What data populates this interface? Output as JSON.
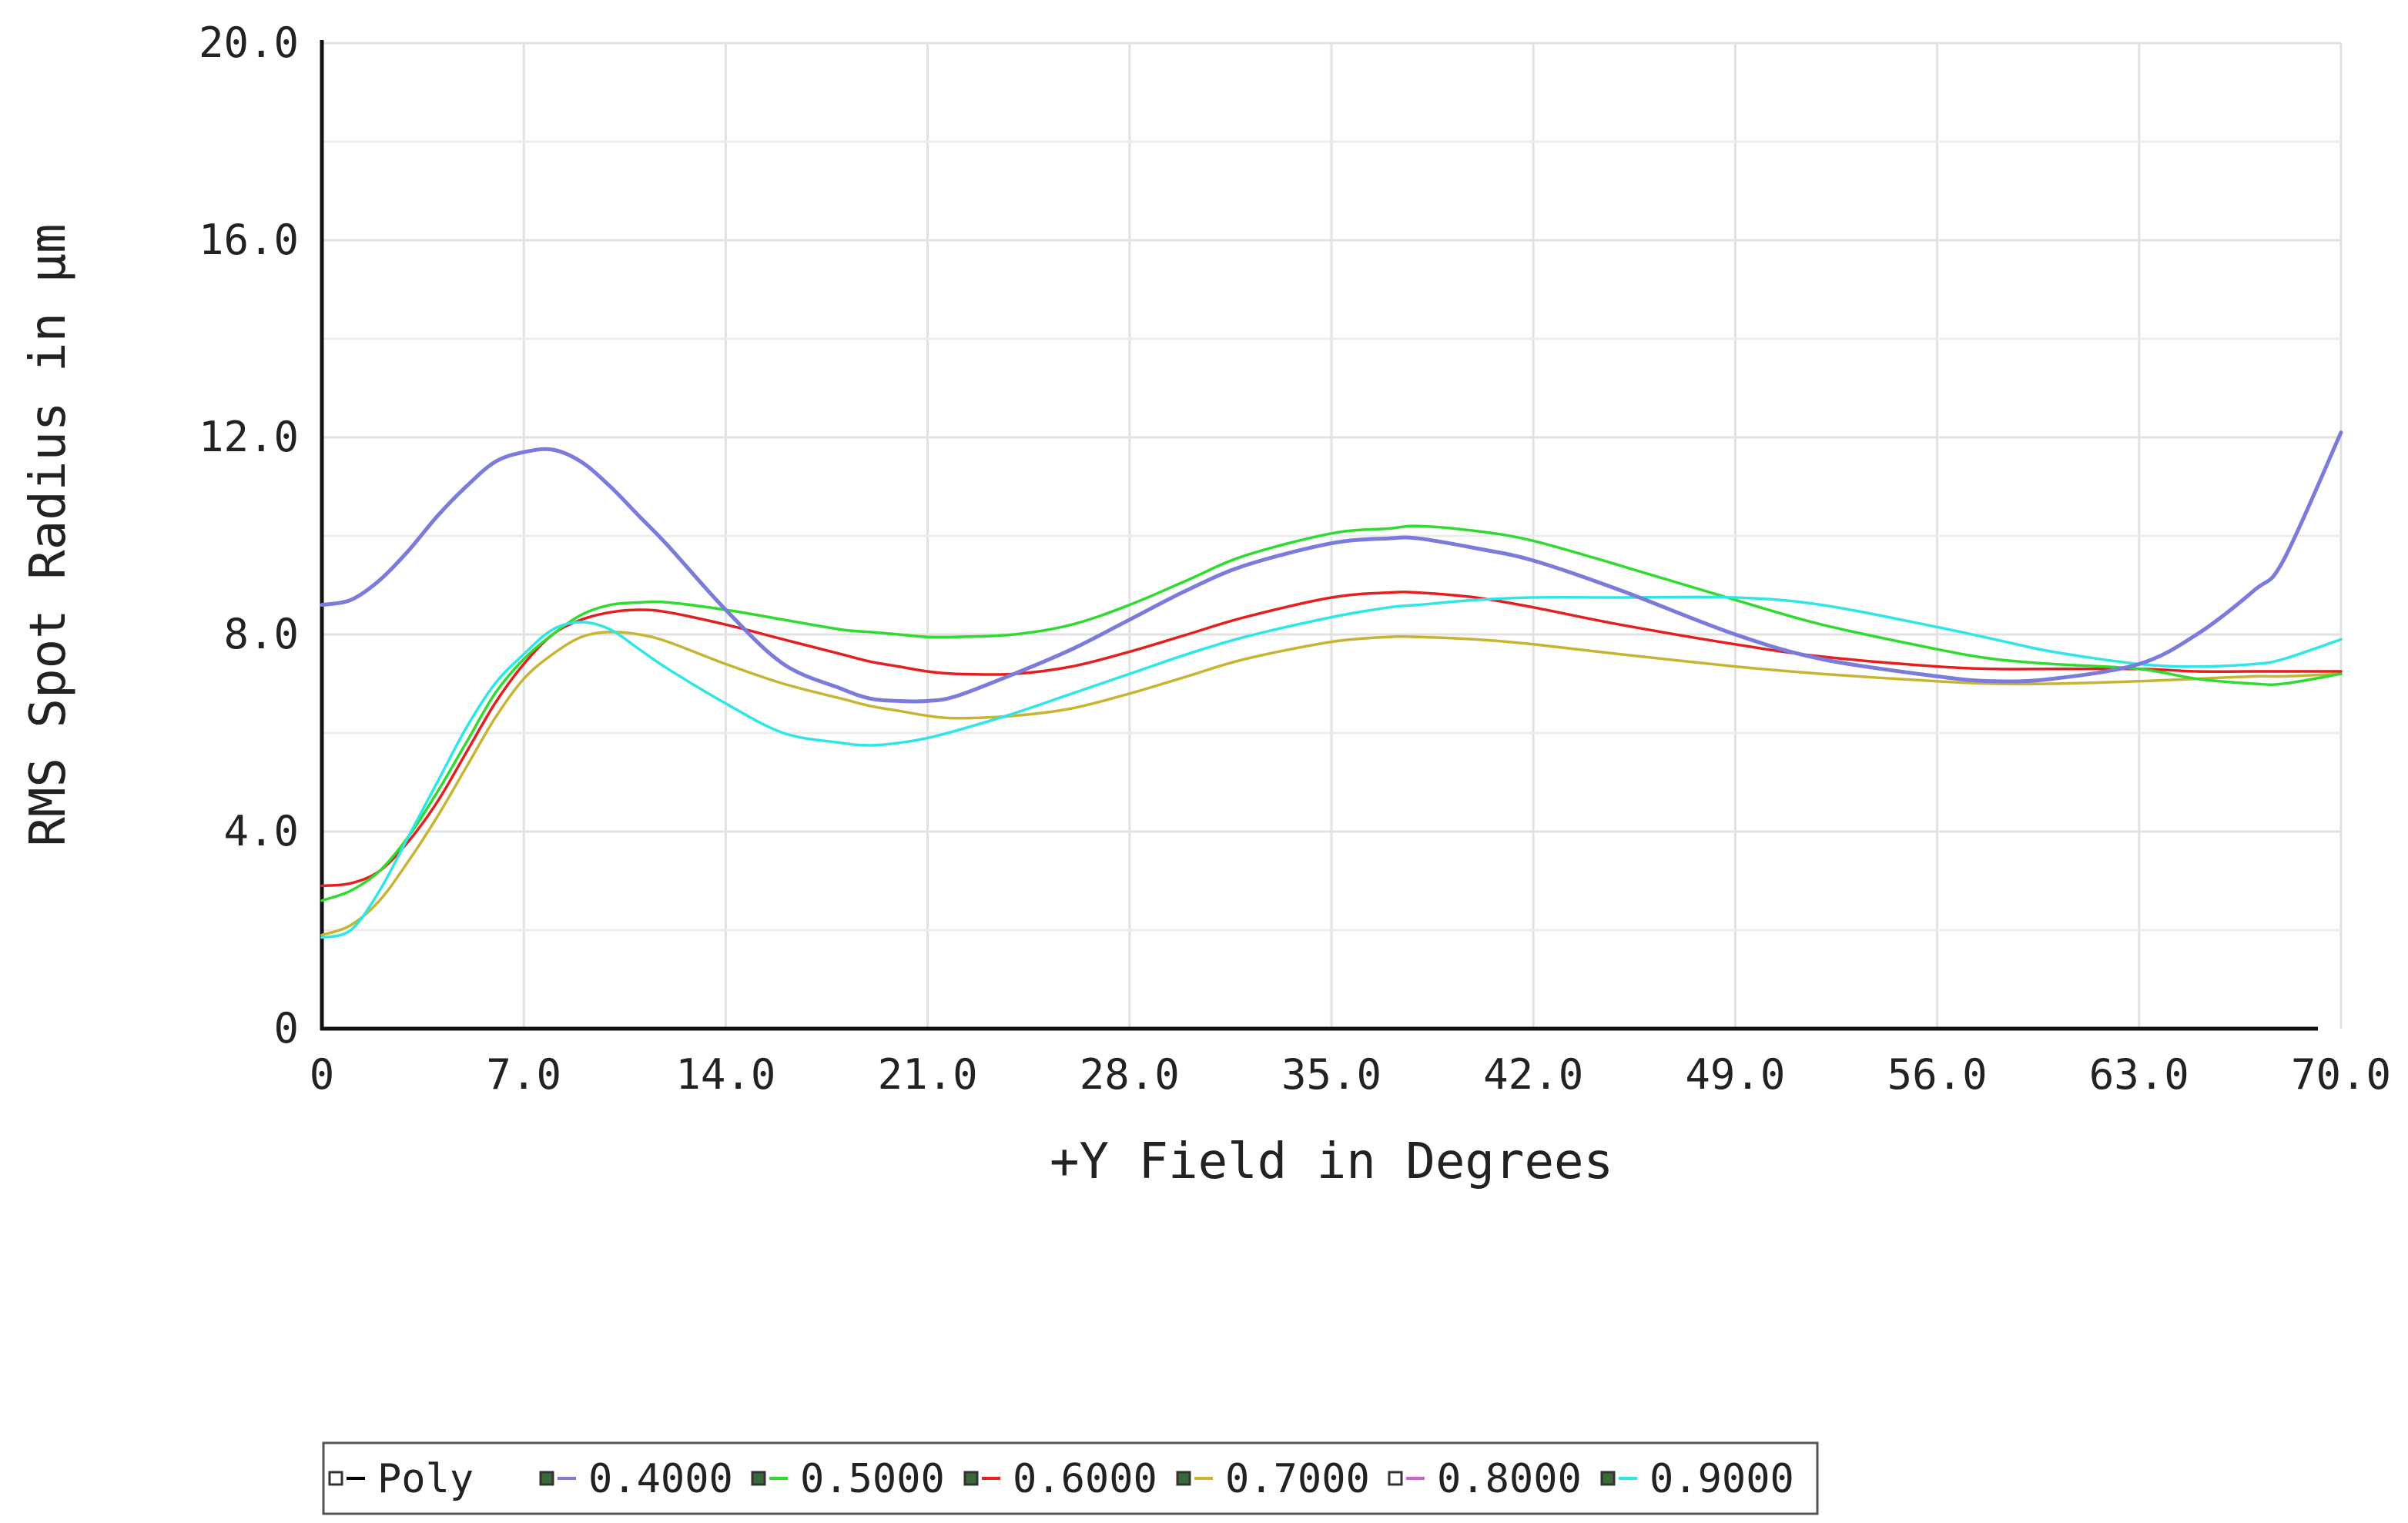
{
  "chart_data": {
    "type": "line",
    "xlabel": "+Y Field in Degrees",
    "ylabel": "RMS Spot Radius in µm",
    "xlim": [
      0,
      70
    ],
    "ylim": [
      0,
      20
    ],
    "x_ticks": [
      "0",
      "7.0",
      "14.0",
      "21.0",
      "28.0",
      "35.0",
      "42.0",
      "49.0",
      "56.0",
      "63.0",
      "70.0"
    ],
    "y_ticks": [
      "0",
      "4.0",
      "8.0",
      "12.0",
      "16.0",
      "20.0"
    ],
    "grid": true,
    "legend_position": "bottom",
    "legend": [
      {
        "label": "Poly",
        "color": "#000000",
        "has_series": false
      },
      {
        "label": "0.4000",
        "color": "#7b7bdb",
        "has_series": true
      },
      {
        "label": "0.5000",
        "color": "#2edb2e",
        "has_series": true
      },
      {
        "label": "0.6000",
        "color": "#e61e1e",
        "has_series": true
      },
      {
        "label": "0.7000",
        "color": "#c8b432",
        "has_series": true
      },
      {
        "label": "0.8000",
        "color": "#d35fd3",
        "has_series": false
      },
      {
        "label": "0.9000",
        "color": "#2ee6e6",
        "has_series": true
      }
    ],
    "x": [
      0,
      1,
      2,
      3,
      4,
      5,
      6,
      7,
      8,
      9,
      10,
      11,
      12,
      14,
      16,
      18,
      19,
      20,
      21,
      22,
      24,
      26,
      28,
      30,
      32,
      35,
      37,
      38,
      40,
      42,
      45,
      49,
      52,
      56,
      58,
      60,
      63,
      65,
      67,
      68,
      70
    ],
    "series": [
      {
        "name": "0.4000",
        "color": "#7b7bdb",
        "values": [
          8.6,
          8.7,
          9.1,
          9.7,
          10.4,
          11.0,
          11.5,
          11.7,
          11.75,
          11.5,
          11.0,
          10.4,
          9.8,
          8.5,
          7.4,
          6.9,
          6.7,
          6.65,
          6.65,
          6.75,
          7.2,
          7.7,
          8.3,
          8.9,
          9.4,
          9.85,
          9.95,
          9.95,
          9.75,
          9.5,
          8.9,
          8.0,
          7.5,
          7.15,
          7.05,
          7.1,
          7.4,
          8.0,
          8.9,
          9.5,
          12.1
        ]
      },
      {
        "name": "0.5000",
        "color": "#2edb2e",
        "values": [
          2.6,
          2.8,
          3.2,
          3.9,
          4.8,
          5.8,
          6.8,
          7.5,
          8.0,
          8.4,
          8.6,
          8.65,
          8.65,
          8.5,
          8.3,
          8.1,
          8.05,
          8.0,
          7.95,
          7.95,
          8.0,
          8.2,
          8.6,
          9.1,
          9.6,
          10.05,
          10.15,
          10.2,
          10.1,
          9.9,
          9.4,
          8.7,
          8.2,
          7.7,
          7.5,
          7.4,
          7.3,
          7.1,
          7.0,
          7.0,
          7.2
        ]
      },
      {
        "name": "0.6000",
        "color": "#e61e1e",
        "values": [
          2.9,
          2.95,
          3.2,
          3.8,
          4.6,
          5.6,
          6.6,
          7.4,
          8.0,
          8.3,
          8.45,
          8.5,
          8.45,
          8.2,
          7.9,
          7.6,
          7.45,
          7.35,
          7.25,
          7.2,
          7.2,
          7.35,
          7.65,
          8.0,
          8.35,
          8.75,
          8.85,
          8.85,
          8.75,
          8.55,
          8.2,
          7.8,
          7.55,
          7.35,
          7.3,
          7.3,
          7.3,
          7.25,
          7.25,
          7.25,
          7.25
        ]
      },
      {
        "name": "0.7000",
        "color": "#c8b432",
        "values": [
          1.9,
          2.1,
          2.6,
          3.4,
          4.3,
          5.3,
          6.3,
          7.1,
          7.6,
          7.95,
          8.05,
          8.0,
          7.85,
          7.4,
          7.0,
          6.7,
          6.55,
          6.45,
          6.35,
          6.3,
          6.35,
          6.5,
          6.8,
          7.15,
          7.5,
          7.85,
          7.95,
          7.95,
          7.9,
          7.8,
          7.6,
          7.35,
          7.2,
          7.05,
          7.0,
          7.0,
          7.05,
          7.1,
          7.15,
          7.15,
          7.2
        ]
      },
      {
        "name": "0.9000",
        "color": "#2ee6e6",
        "values": [
          1.85,
          2.0,
          2.8,
          3.9,
          5.0,
          6.1,
          7.0,
          7.6,
          8.1,
          8.25,
          8.1,
          7.7,
          7.3,
          6.6,
          6.0,
          5.8,
          5.75,
          5.8,
          5.9,
          6.05,
          6.4,
          6.8,
          7.2,
          7.6,
          7.95,
          8.35,
          8.55,
          8.6,
          8.7,
          8.75,
          8.75,
          8.75,
          8.6,
          8.15,
          7.9,
          7.65,
          7.4,
          7.35,
          7.4,
          7.5,
          7.9
        ]
      }
    ]
  }
}
